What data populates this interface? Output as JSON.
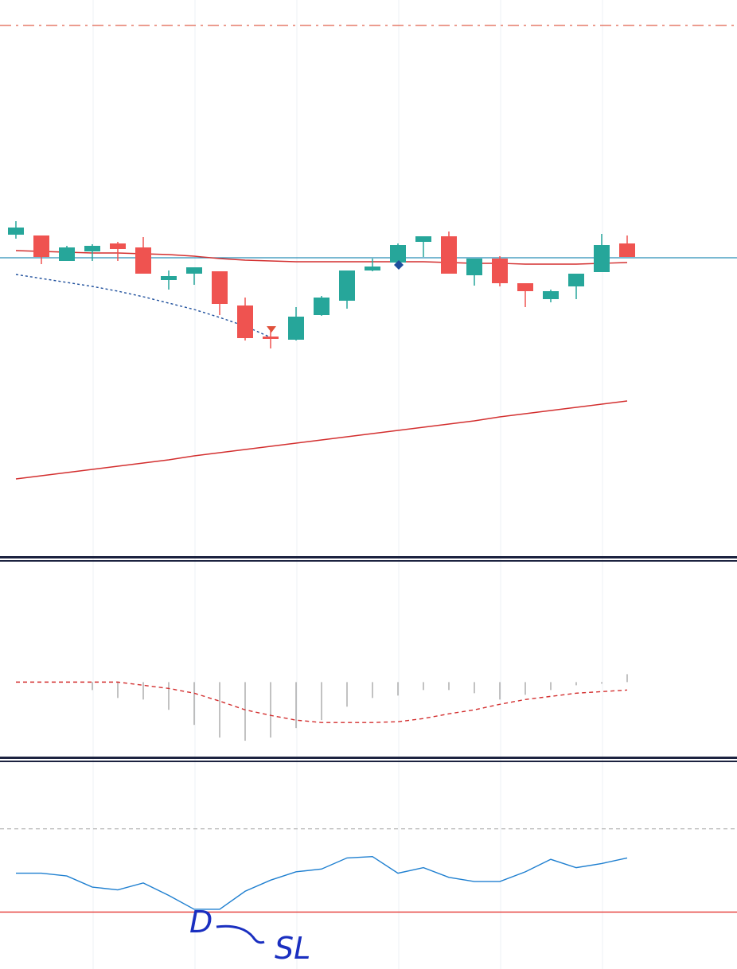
{
  "chart_data": [
    {
      "type": "candlestick",
      "ylim": [
        0,
        700
      ],
      "up_color": "#26a69a",
      "down_color": "#ef5350",
      "open": [
        405,
        404,
        372,
        384,
        394,
        389,
        348,
        356,
        359,
        316,
        277,
        273,
        304,
        322,
        360,
        370,
        396,
        403,
        354,
        375,
        344,
        324,
        340,
        358,
        394
      ],
      "high": [
        422,
        404,
        391,
        393,
        396,
        402,
        360,
        364,
        359,
        326,
        284,
        314,
        328,
        360,
        375,
        394,
        403,
        409,
        375,
        378,
        344,
        336,
        356,
        406,
        404
      ],
      "low": [
        400,
        368,
        372,
        372,
        372,
        356,
        336,
        342,
        304,
        272,
        262,
        272,
        303,
        312,
        359,
        370,
        377,
        356,
        341,
        340,
        314,
        320,
        324,
        358,
        377
      ],
      "close": [
        414,
        377,
        389,
        391,
        387,
        356,
        353,
        364,
        318,
        275,
        274,
        302,
        326,
        360,
        365,
        392,
        403,
        356,
        375,
        344,
        334,
        334,
        356,
        392,
        377
      ],
      "series": [
        {
          "color": "#d32f2f",
          "style": "solid",
          "values": [
            385,
            384,
            383,
            382,
            382,
            381,
            380,
            378,
            375,
            373,
            372,
            371,
            371,
            371,
            371,
            371,
            371,
            370,
            369,
            369,
            368,
            368,
            368,
            369,
            370
          ]
        },
        {
          "color": "#1e4f9c",
          "style": "dotted",
          "values": [
            355,
            350,
            345,
            340,
            334,
            327,
            319,
            311,
            301,
            290,
            276,
            null,
            null,
            null,
            null,
            null,
            null,
            null,
            null,
            null,
            null,
            null,
            null,
            null,
            null
          ]
        },
        {
          "color": "#d32f2f",
          "style": "solid",
          "values": [
            98,
            102,
            106,
            110,
            114,
            118,
            122,
            127,
            131,
            135,
            139,
            143,
            147,
            151,
            155,
            159,
            163,
            167,
            171,
            176,
            180,
            184,
            188,
            192,
            196
          ]
        }
      ],
      "hlines": [
        {
          "value": 376,
          "color": "#2a8fb8",
          "style": "solid"
        },
        {
          "value": 668,
          "color": "#e0604c",
          "style": "dashdot"
        }
      ]
    },
    {
      "type": "bar",
      "ylim": [
        -94,
        151
      ],
      "color": "#999999",
      "values": [
        0,
        0,
        0,
        -10,
        -20,
        -22,
        -35,
        -54,
        -70,
        -74,
        -70,
        -58,
        -48,
        -31,
        -20,
        -17,
        -10,
        -10,
        -14,
        -22,
        -16,
        -10,
        -4,
        -2,
        10
      ],
      "series": [
        {
          "color": "#d32f2f",
          "style": "dashed",
          "values": [
            0,
            0,
            0,
            0,
            0,
            -4,
            -8,
            -14,
            -24,
            -35,
            -42,
            -48,
            -51,
            -51,
            -51,
            -50,
            -46,
            -40,
            -35,
            -28,
            -22,
            -18,
            -14,
            -12,
            -10
          ]
        }
      ]
    },
    {
      "type": "line",
      "ylim": [
        -21,
        128
      ],
      "series": [
        {
          "color": "#1e7fd0",
          "style": "solid",
          "values": [
            48,
            48,
            46,
            38,
            36,
            41,
            32,
            22,
            22,
            35,
            43,
            49,
            51,
            59,
            60,
            48,
            52,
            45,
            42,
            42,
            49,
            58,
            52,
            55,
            59
          ]
        }
      ],
      "hlines": [
        {
          "value": 80,
          "color": "#bbbbbb",
          "style": "dashed"
        },
        {
          "value": 20,
          "color": "#e53935",
          "style": "solid"
        }
      ]
    }
  ],
  "annotations": [
    "D",
    "SL"
  ]
}
